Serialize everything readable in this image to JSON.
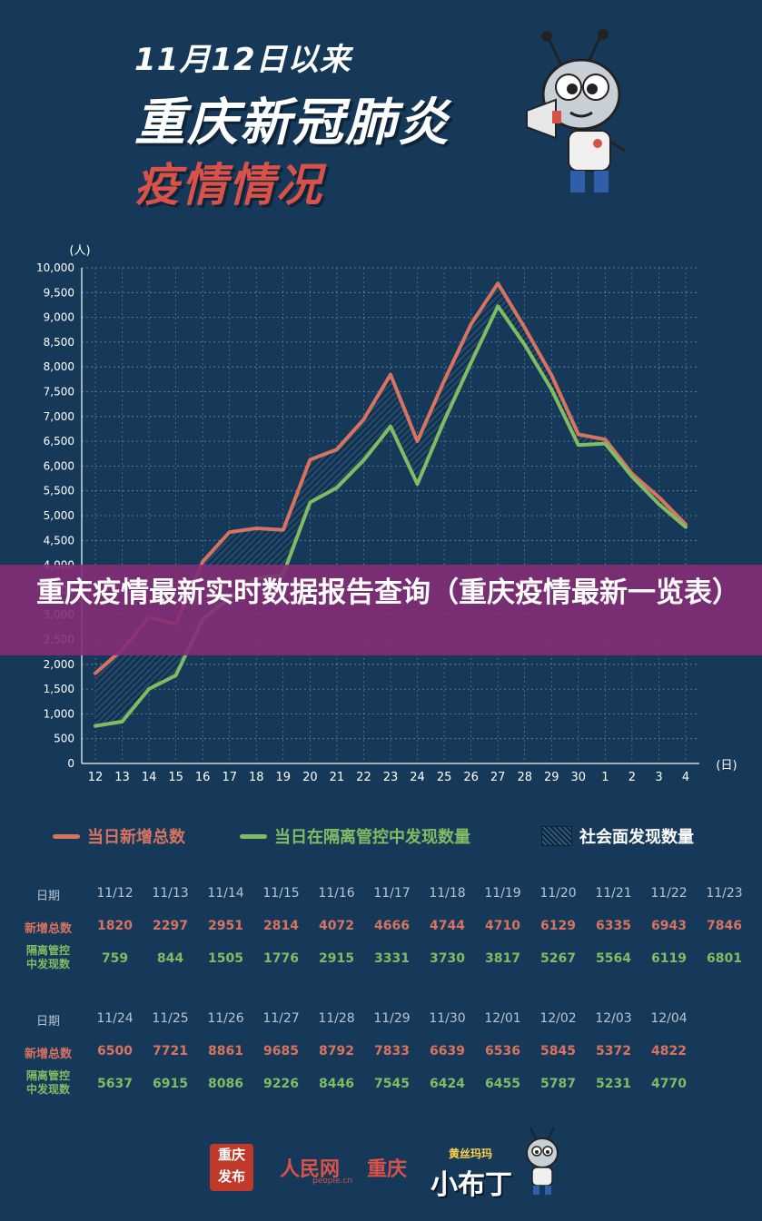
{
  "header": {
    "line1": "11月12日以来",
    "line2": "重庆新冠肺炎",
    "line3": "疫情情况"
  },
  "banner": {
    "text": "重庆疫情最新实时数据报告查询（重庆疫情最新一览表）"
  },
  "chart_data": {
    "type": "line",
    "title": "",
    "ylabel": "(人)",
    "xlabel": "(日)",
    "ylim": [
      0,
      10000
    ],
    "yticks": [
      0,
      500,
      1000,
      1500,
      2000,
      2500,
      3000,
      3500,
      4000,
      4500,
      5000,
      5500,
      6000,
      6500,
      7000,
      7500,
      8000,
      8500,
      9000,
      9500,
      10000
    ],
    "ytick_labels": [
      "0",
      "500",
      "1,000",
      "1,500",
      "2,000",
      "2,500",
      "3,000",
      "3,500",
      "4,000",
      "4,500",
      "5,000",
      "5,500",
      "6,000",
      "6,500",
      "7,000",
      "7,500",
      "8,000",
      "8,500",
      "9,000",
      "9,500",
      "10,000"
    ],
    "categories": [
      "12",
      "13",
      "14",
      "15",
      "16",
      "17",
      "18",
      "19",
      "20",
      "21",
      "22",
      "23",
      "24",
      "25",
      "26",
      "27",
      "28",
      "29",
      "30",
      "1",
      "2",
      "3",
      "4"
    ],
    "series": [
      {
        "name": "当日新增总数",
        "color": "#d7735f",
        "values": [
          1820,
          2297,
          2951,
          2814,
          4072,
          4666,
          4744,
          4710,
          6129,
          6335,
          6943,
          7846,
          6500,
          7721,
          8861,
          9685,
          8792,
          7833,
          6639,
          6536,
          5845,
          5372,
          4822
        ]
      },
      {
        "name": "当日在隔离管控中发现数量",
        "color": "#7fbc62",
        "values": [
          759,
          844,
          1505,
          1776,
          2915,
          3331,
          3730,
          3817,
          5267,
          5564,
          6119,
          6801,
          5637,
          6915,
          8086,
          9226,
          8446,
          7545,
          6424,
          6455,
          5787,
          5231,
          4770
        ]
      }
    ],
    "area_label": "社会面发现数量",
    "grid": true,
    "legend_position": "bottom"
  },
  "table": {
    "date_label": "日期",
    "total_label": "新增总数",
    "quarantine_label_1": "隔离管控",
    "quarantine_label_2": "中发现数",
    "part1": {
      "dates": [
        "11/12",
        "11/13",
        "11/14",
        "11/15",
        "11/16",
        "11/17",
        "11/18",
        "11/19",
        "11/20",
        "11/21",
        "11/22",
        "11/23"
      ],
      "totals": [
        "1820",
        "2297",
        "2951",
        "2814",
        "4072",
        "4666",
        "4744",
        "4710",
        "6129",
        "6335",
        "6943",
        "7846"
      ],
      "quarantine": [
        "759",
        "844",
        "1505",
        "1776",
        "2915",
        "3331",
        "3730",
        "3817",
        "5267",
        "5564",
        "6119",
        "6801"
      ]
    },
    "part2": {
      "dates": [
        "11/24",
        "11/25",
        "11/26",
        "11/27",
        "11/28",
        "11/29",
        "11/30",
        "12/01",
        "12/02",
        "12/03",
        "12/04"
      ],
      "totals": [
        "6500",
        "7721",
        "8861",
        "9685",
        "8792",
        "7833",
        "6639",
        "6536",
        "5845",
        "5372",
        "4822"
      ],
      "quarantine": [
        "5637",
        "6915",
        "8086",
        "9226",
        "8446",
        "7545",
        "6424",
        "6455",
        "5787",
        "5231",
        "4770"
      ]
    }
  },
  "footer": {
    "logo1_line1": "重庆",
    "logo1_line2": "发布",
    "logo2": "人民网",
    "logo2_sub": "people.cn",
    "logo3": "重庆",
    "logo4_top": "黄丝玛玛",
    "logo4": "小布丁"
  }
}
